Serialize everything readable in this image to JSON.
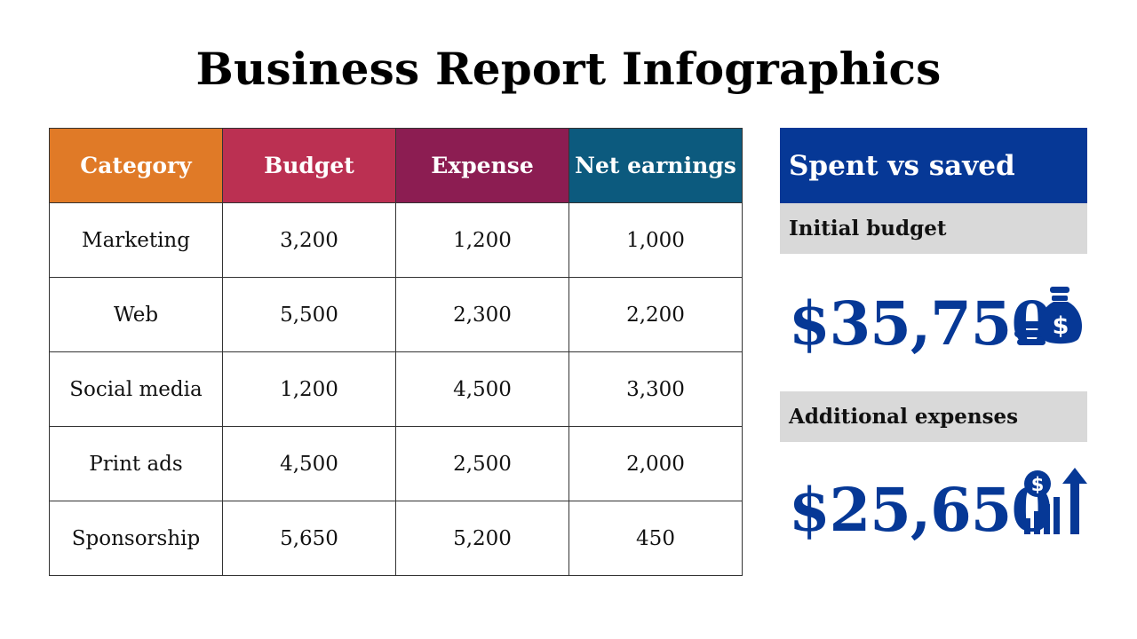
{
  "title": "Business Report Infographics",
  "table": {
    "headers": [
      {
        "label": "Category",
        "color": "#e07a27"
      },
      {
        "label": "Budget",
        "color": "#bb3052"
      },
      {
        "label": "Expense",
        "color": "#8c1d52"
      },
      {
        "label": "Net earnings",
        "color": "#0c5a7e"
      }
    ],
    "rows": [
      [
        "Marketing",
        "3,200",
        "1,200",
        "1,000"
      ],
      [
        "Web",
        "5,500",
        "2,300",
        "2,200"
      ],
      [
        "Social media",
        "1,200",
        "4,500",
        "3,300"
      ],
      [
        "Print ads",
        "4,500",
        "2,500",
        "2,000"
      ],
      [
        "Sponsorship",
        "5,650",
        "5,200",
        "450"
      ]
    ]
  },
  "panel": {
    "title": "Spent vs saved",
    "accent": "#063896",
    "initial": {
      "label": "Initial budget",
      "amount": "$35,750",
      "icon": "money-bag-coins-icon"
    },
    "additional": {
      "label": "Additional expenses",
      "amount": "$25,650",
      "icon": "dollar-growth-chart-icon"
    }
  }
}
